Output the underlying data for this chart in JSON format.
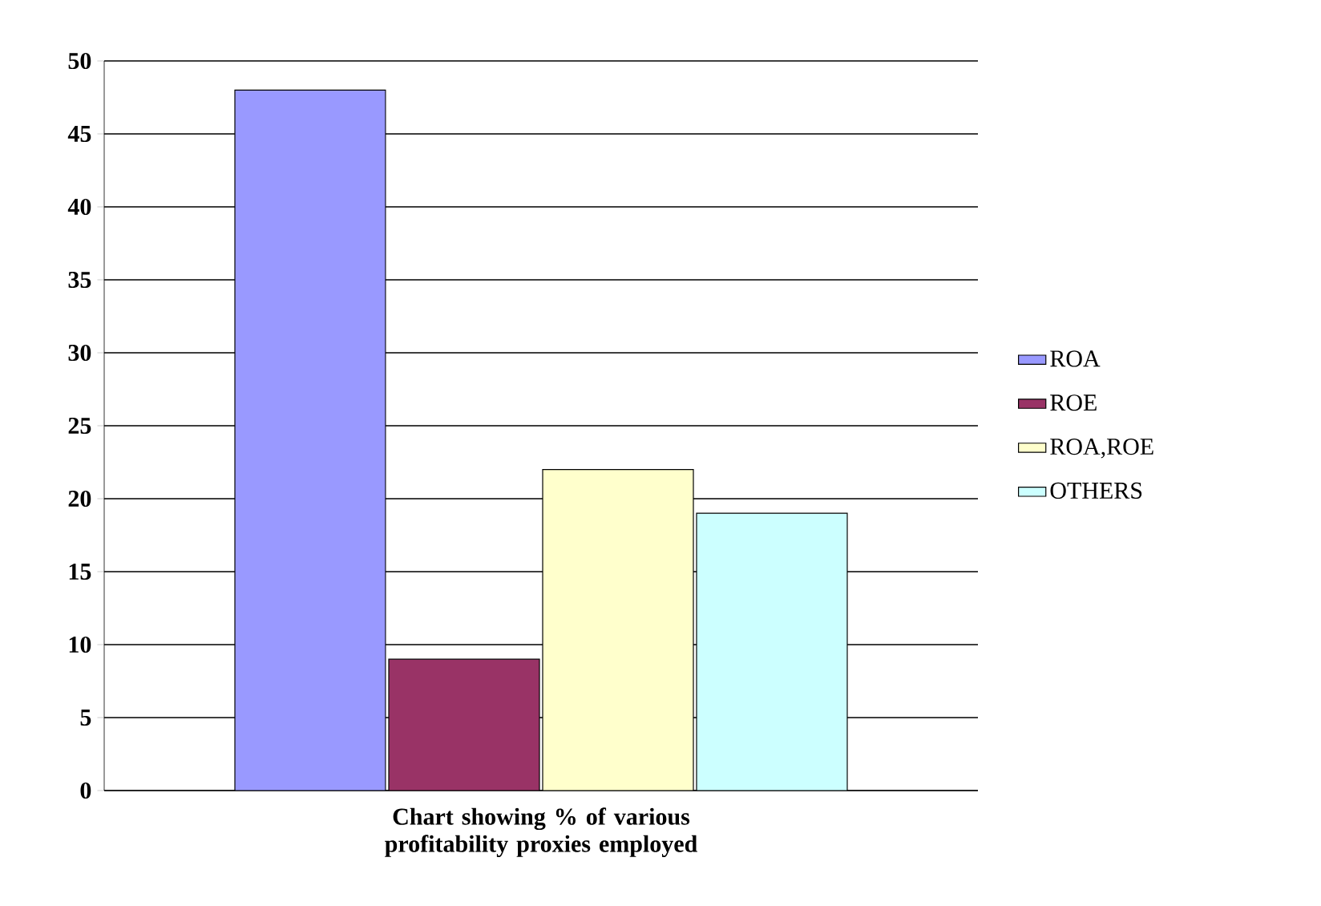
{
  "chart_data": {
    "type": "bar",
    "xlabel": "Chart showing % of various profitability proxies employed",
    "categories": [
      null
    ],
    "series": [
      {
        "name": "ROA",
        "color": "#9999ff",
        "values": [
          48
        ]
      },
      {
        "name": "ROE",
        "color": "#993366",
        "values": [
          9
        ]
      },
      {
        "name": "ROA,ROE",
        "color": "#ffffcc",
        "values": [
          22
        ]
      },
      {
        "name": "OTHERS",
        "color": "#ccffff",
        "values": [
          19
        ]
      }
    ],
    "ylim": [
      0,
      50
    ],
    "yticks": [
      0,
      5,
      10,
      15,
      20,
      25,
      30,
      35,
      40,
      45,
      50
    ],
    "grid": "y",
    "legend": "right"
  }
}
